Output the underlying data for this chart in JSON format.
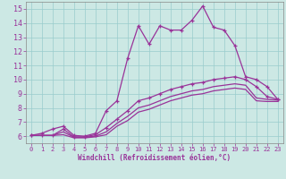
{
  "title": "",
  "xlabel": "Windchill (Refroidissement éolien,°C)",
  "xlim": [
    -0.5,
    23.5
  ],
  "ylim": [
    5.5,
    15.5
  ],
  "xticks": [
    0,
    1,
    2,
    3,
    4,
    5,
    6,
    7,
    8,
    9,
    10,
    11,
    12,
    13,
    14,
    15,
    16,
    17,
    18,
    19,
    20,
    21,
    22,
    23
  ],
  "yticks": [
    6,
    7,
    8,
    9,
    10,
    11,
    12,
    13,
    14,
    15
  ],
  "bg_color": "#cce8e4",
  "line_color": "#993399",
  "grid_color": "#99cccc",
  "lines": [
    {
      "x": [
        0,
        1,
        2,
        3,
        4,
        5,
        6,
        7,
        8,
        9,
        10,
        11,
        12,
        13,
        14,
        15,
        16,
        17,
        18,
        19,
        20,
        21,
        22,
        23
      ],
      "y": [
        6.05,
        6.2,
        6.5,
        6.7,
        6.05,
        6.0,
        6.2,
        7.8,
        8.5,
        11.5,
        13.8,
        12.5,
        13.8,
        13.5,
        13.5,
        14.2,
        15.2,
        13.7,
        13.5,
        12.4,
        10.2,
        10.0,
        9.5,
        8.6
      ],
      "marker": true,
      "lw": 0.9
    },
    {
      "x": [
        0,
        1,
        2,
        3,
        4,
        5,
        6,
        7,
        8,
        9,
        10,
        11,
        12,
        13,
        14,
        15,
        16,
        17,
        18,
        19,
        20,
        21,
        22,
        23
      ],
      "y": [
        6.05,
        6.05,
        6.05,
        6.5,
        5.95,
        5.95,
        6.1,
        6.6,
        7.2,
        7.8,
        8.5,
        8.7,
        9.0,
        9.3,
        9.5,
        9.7,
        9.8,
        10.0,
        10.1,
        10.2,
        10.0,
        9.5,
        8.8,
        8.6
      ],
      "marker": true,
      "lw": 0.9
    },
    {
      "x": [
        0,
        1,
        2,
        3,
        4,
        5,
        6,
        7,
        8,
        9,
        10,
        11,
        12,
        13,
        14,
        15,
        16,
        17,
        18,
        19,
        20,
        21,
        22,
        23
      ],
      "y": [
        6.05,
        6.05,
        6.05,
        6.3,
        5.92,
        5.92,
        6.0,
        6.3,
        6.9,
        7.4,
        8.0,
        8.2,
        8.5,
        8.8,
        9.0,
        9.2,
        9.3,
        9.5,
        9.6,
        9.7,
        9.6,
        8.7,
        8.6,
        8.55
      ],
      "marker": false,
      "lw": 0.9
    },
    {
      "x": [
        0,
        1,
        2,
        3,
        4,
        5,
        6,
        7,
        8,
        9,
        10,
        11,
        12,
        13,
        14,
        15,
        16,
        17,
        18,
        19,
        20,
        21,
        22,
        23
      ],
      "y": [
        6.05,
        6.05,
        6.05,
        6.1,
        5.88,
        5.88,
        5.95,
        6.1,
        6.7,
        7.1,
        7.7,
        7.9,
        8.2,
        8.5,
        8.7,
        8.9,
        9.0,
        9.2,
        9.3,
        9.4,
        9.3,
        8.5,
        8.45,
        8.45
      ],
      "marker": false,
      "lw": 0.9
    }
  ]
}
